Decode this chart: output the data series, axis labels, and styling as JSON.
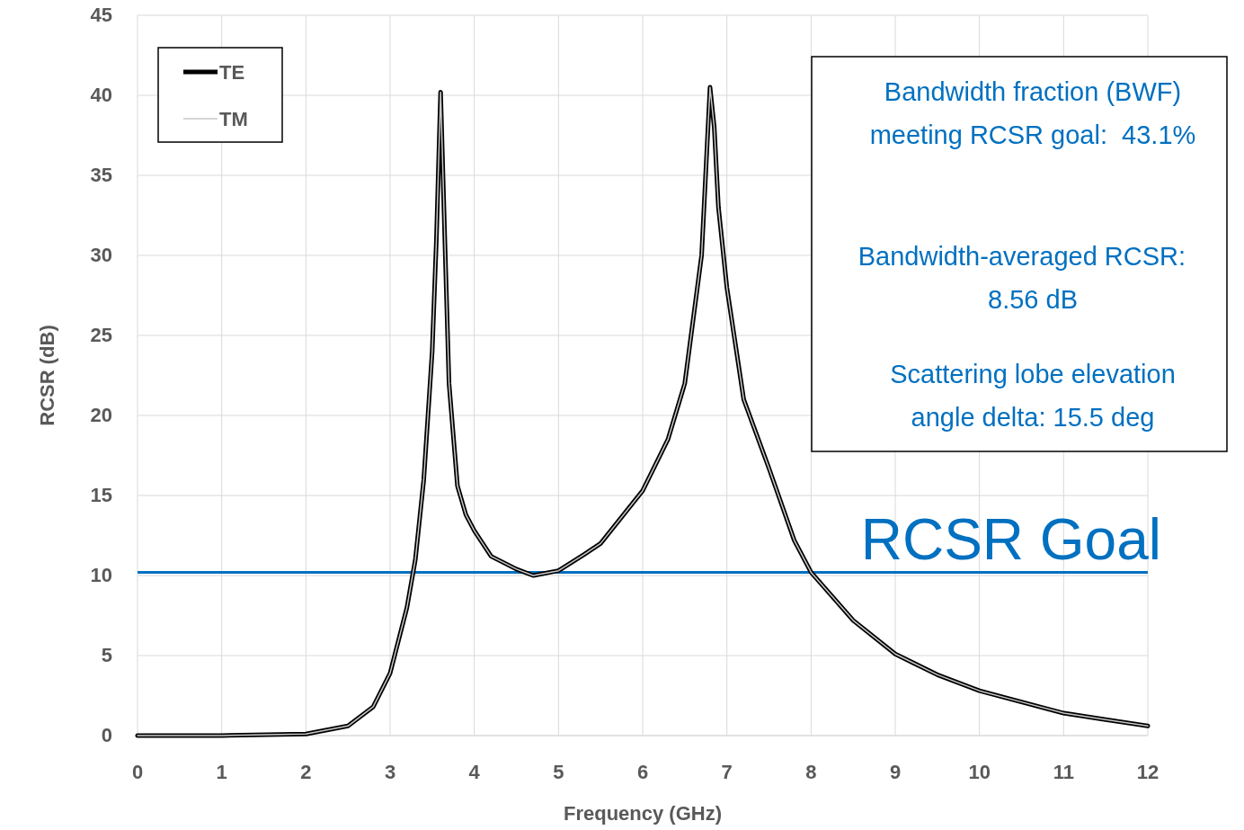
{
  "chart_data": {
    "type": "line",
    "xlabel": "Frequency (GHz)",
    "ylabel": "RCSR (dB)",
    "xlim": [
      0,
      12
    ],
    "xticks": [
      0,
      1,
      2,
      3,
      4,
      5,
      6,
      7,
      8,
      9,
      10,
      11,
      12
    ],
    "ylim": [
      0,
      45
    ],
    "yticks": [
      0,
      5,
      10,
      15,
      20,
      25,
      30,
      35,
      40,
      45
    ],
    "grid": true,
    "legend": "top left",
    "marker": "none",
    "x": [
      0,
      1,
      2,
      2.5,
      2.8,
      3,
      3.2,
      3.3,
      3.4,
      3.5,
      3.55,
      3.6,
      3.65,
      3.7,
      3.8,
      3.9,
      4,
      4.2,
      4.5,
      4.7,
      5,
      5.3,
      5.5,
      6,
      6.3,
      6.5,
      6.6,
      6.7,
      6.8,
      6.85,
      6.9,
      7,
      7.2,
      7.5,
      7.8,
      8,
      8.5,
      9,
      9.5,
      10,
      10.5,
      11,
      11.5,
      12
    ],
    "series": [
      {
        "name": "TE",
        "color": "#000000",
        "values": [
          0,
          0,
          0.1,
          0.6,
          1.8,
          3.9,
          8,
          11,
          16,
          24,
          31,
          40.2,
          31,
          22,
          15.6,
          13.8,
          12.8,
          11.2,
          10.4,
          10,
          10.3,
          11.3,
          12,
          15.3,
          18.5,
          22,
          26,
          30,
          40.5,
          38,
          33,
          28,
          21,
          16.7,
          12.2,
          10.2,
          7.2,
          5.1,
          3.8,
          2.8,
          2.1,
          1.4,
          1,
          0.6
        ]
      },
      {
        "name": "TM",
        "color": "#c8c8c8",
        "values": [
          0,
          0,
          0.1,
          0.6,
          1.8,
          3.9,
          8,
          11,
          16,
          24,
          31,
          40.2,
          31,
          22,
          15.6,
          13.8,
          12.8,
          11.2,
          10.4,
          10,
          10.3,
          11.3,
          12,
          15.3,
          18.5,
          22,
          26,
          30,
          40.5,
          38,
          33,
          28,
          21,
          16.7,
          12.2,
          10.2,
          7.2,
          5.1,
          3.8,
          2.8,
          2.1,
          1.4,
          1,
          0.6
        ]
      }
    ],
    "ref_lines": [
      {
        "axis": "y",
        "value": 10.2,
        "label": "RCSR Goal",
        "color": "#0070c0"
      }
    ],
    "annotations": [
      "Bandwidth fraction (BWF) meeting RCSR goal:  43.1%",
      "Bandwidth-averaged RCSR:        8.56 dB",
      "Scattering lobe elevation angle delta: 15.5 deg"
    ]
  }
}
